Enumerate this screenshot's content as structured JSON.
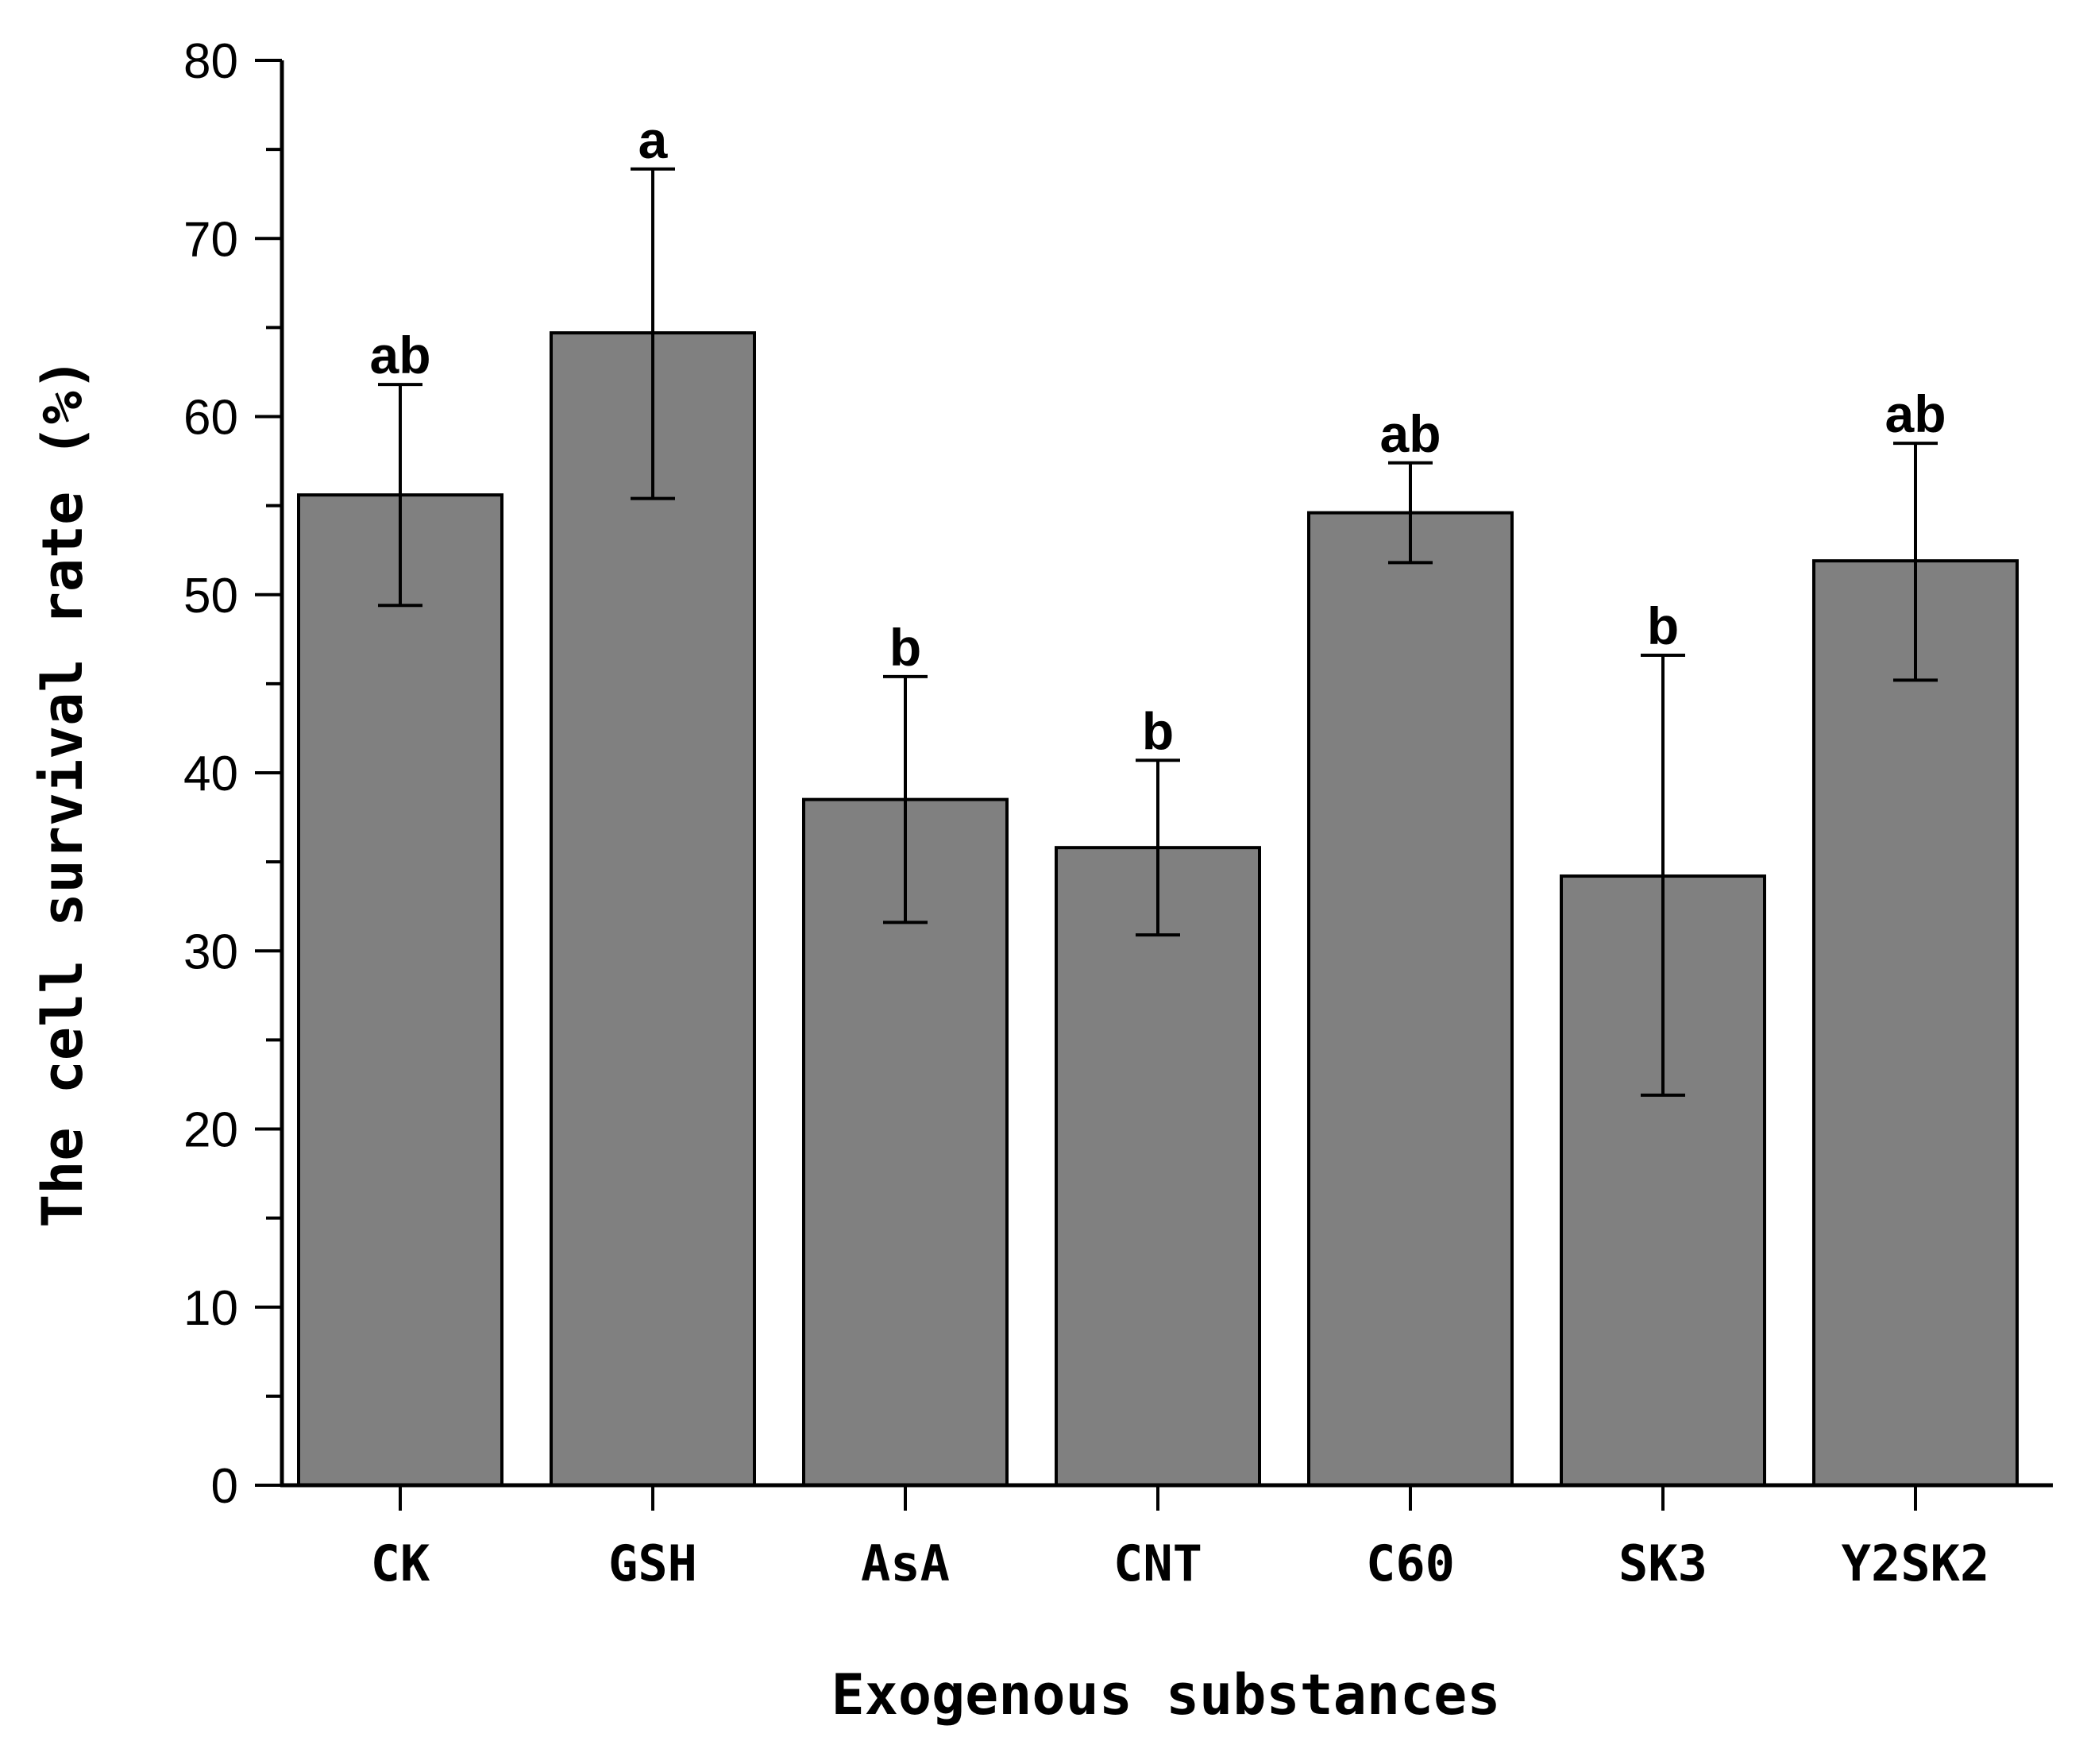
{
  "chart_data": {
    "type": "bar",
    "title": "",
    "xlabel": "Exogenous substances",
    "ylabel": "The cell survival rate (%)",
    "ylim": [
      0,
      80
    ],
    "yticks": [
      0,
      10,
      20,
      30,
      40,
      50,
      60,
      70,
      80
    ],
    "y_minor_step": 5,
    "grid": false,
    "legend": "none",
    "bar_color": "#808080",
    "categories": [
      "CK",
      "GSH",
      "AsA",
      "CNT",
      "C60",
      "SK3",
      "Y2SK2"
    ],
    "values": [
      55.6,
      64.7,
      38.5,
      35.8,
      54.6,
      34.2,
      51.9
    ],
    "error_upper": [
      61.8,
      73.9,
      45.4,
      40.7,
      57.4,
      46.6,
      58.5
    ],
    "error_lower": [
      49.4,
      55.4,
      31.6,
      30.9,
      51.8,
      21.9,
      45.2
    ],
    "significance_labels": [
      "ab",
      "a",
      "b",
      "b",
      "ab",
      "b",
      "ab"
    ]
  }
}
